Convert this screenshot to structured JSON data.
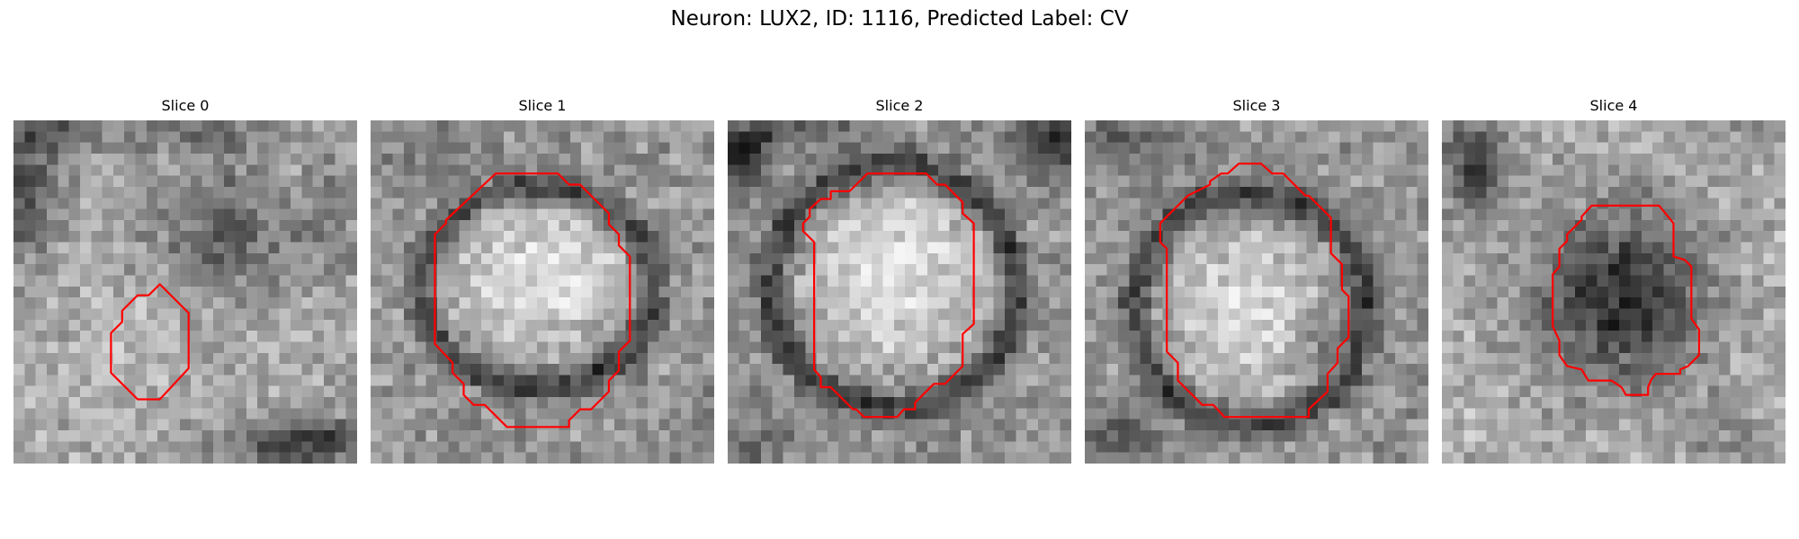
{
  "figure": {
    "title": "Neuron: LUX2, ID: 1116, Predicted Label: CV"
  },
  "style": {
    "contour_color": "#ff0000"
  },
  "panels": [
    {
      "title": "Slice 0",
      "contour": "red-outline-small-oval"
    },
    {
      "title": "Slice 1",
      "contour": "red-outline-large-octagon"
    },
    {
      "title": "Slice 2",
      "contour": "red-outline-large-octagon"
    },
    {
      "title": "Slice 3",
      "contour": "red-outline-large-octagon"
    },
    {
      "title": "Slice 4",
      "contour": "red-outline-medium-octagon"
    }
  ]
}
